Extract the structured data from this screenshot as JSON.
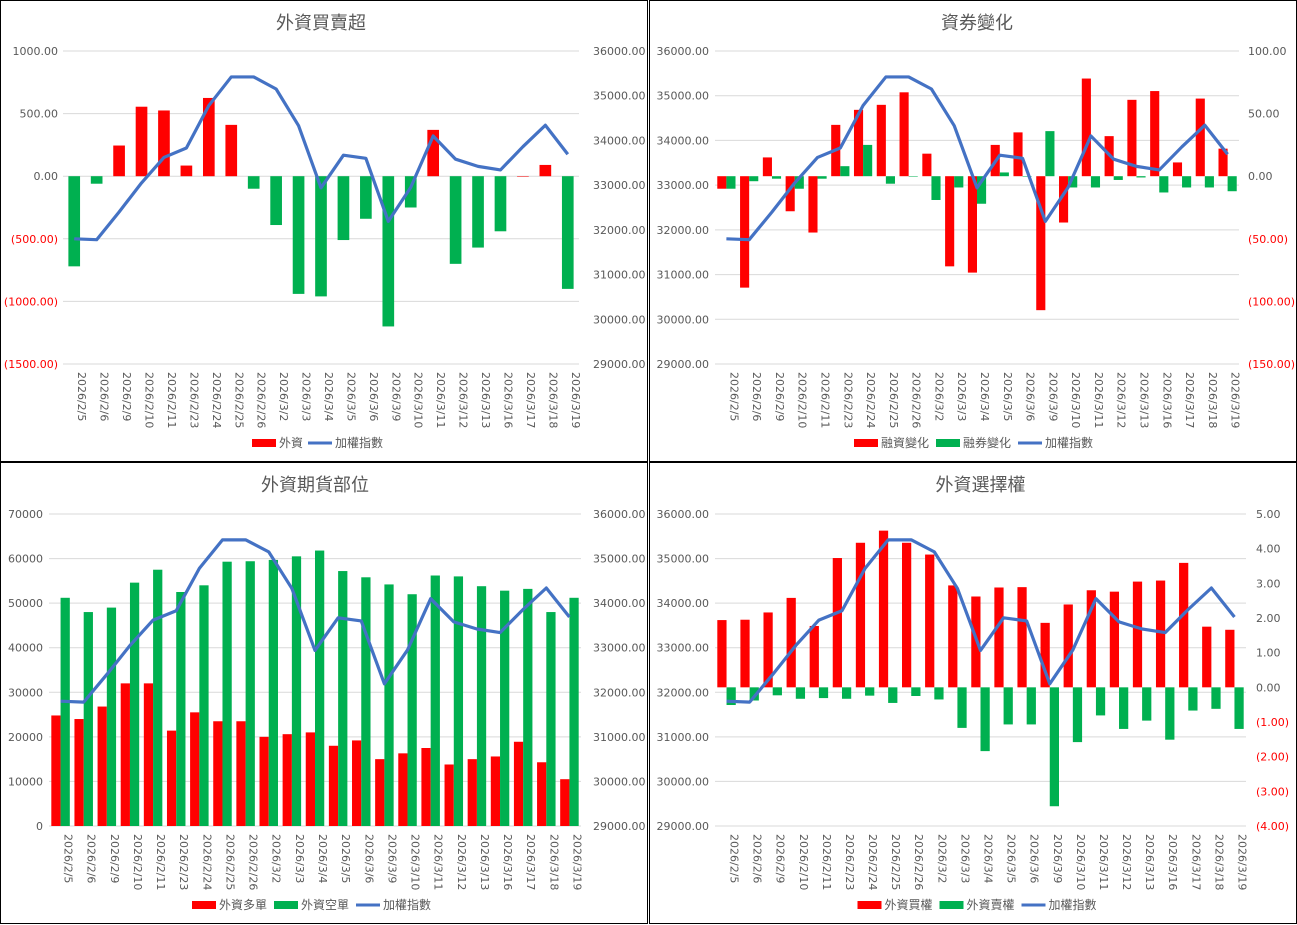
{
  "colors": {
    "red": "#ff0000",
    "green": "#00b050",
    "blue": "#4472c4",
    "grid": "#d9d9d9",
    "text": "#595959",
    "negative": "#ff0000"
  },
  "dates": [
    "2026/2/5",
    "2026/2/6",
    "2026/2/9",
    "2026/2/10",
    "2026/2/11",
    "2026/2/23",
    "2026/2/24",
    "2026/2/25",
    "2026/2/26",
    "2026/3/2",
    "2026/3/3",
    "2026/3/4",
    "2026/3/5",
    "2026/3/6",
    "2026/3/9",
    "2026/3/10",
    "2026/3/11",
    "2026/3/12",
    "2026/3/13",
    "2026/3/16",
    "2026/3/17",
    "2026/3/18",
    "2026/3/19"
  ],
  "index_line": {
    "name": "加權指數",
    "values": [
      31800,
      31780,
      32400,
      33050,
      33620,
      33830,
      34780,
      35420,
      35420,
      35150,
      34330,
      32940,
      33670,
      33600,
      32190,
      32950,
      34100,
      33580,
      33420,
      33340,
      33860,
      34340,
      33690
    ]
  },
  "chart_data": [
    {
      "type": "bar",
      "id": "c1",
      "title": "外資買賣超",
      "ylim": [
        -1500,
        1000
      ],
      "yticks": [
        "1000.00",
        "500.00",
        "0.00",
        "(500.00)",
        "(1000.00)",
        "(1500.00)"
      ],
      "y2lim": [
        29000,
        36000
      ],
      "y2ticks": [
        "36000.00",
        "35000.00",
        "34000.00",
        "33000.00",
        "32000.00",
        "31000.00",
        "30000.00",
        "29000.00"
      ],
      "series": [
        {
          "name": "外資",
          "color": "mixed",
          "values": [
            -720,
            -60,
            245,
            555,
            525,
            85,
            625,
            410,
            -100,
            -390,
            -940,
            -960,
            -510,
            -340,
            -1200,
            -250,
            370,
            -700,
            -570,
            -440,
            0,
            90,
            -900
          ]
        }
      ],
      "legend": [
        "外資",
        "加權指數"
      ]
    },
    {
      "type": "bar",
      "id": "c2",
      "title": "資券變化",
      "ylim": [
        29000,
        36000
      ],
      "yticks": [
        "36000.00",
        "35000.00",
        "34000.00",
        "33000.00",
        "32000.00",
        "31000.00",
        "30000.00",
        "29000.00"
      ],
      "y2lim": [
        -150,
        100
      ],
      "y2ticks": [
        "100.00",
        "50.00",
        "0.00",
        "(50.00)",
        "(100.00)",
        "(150.00)"
      ],
      "series": [
        {
          "name": "融資變化",
          "values": [
            -10,
            -89,
            15,
            -28,
            -45,
            41,
            53,
            57,
            67,
            18,
            -72,
            -77,
            25,
            35,
            -107,
            -37,
            78,
            32,
            61,
            68,
            11,
            62,
            22
          ]
        },
        {
          "name": "融券變化",
          "values": [
            -10,
            -4,
            -2,
            -10,
            -2,
            8,
            25,
            -6,
            0,
            -19,
            -9,
            -22,
            3,
            0,
            36,
            -9,
            -9,
            -3,
            -1,
            -13,
            -9,
            -9,
            -12
          ]
        }
      ],
      "legend": [
        "融資變化",
        "融券變化",
        "加權指數"
      ]
    },
    {
      "type": "bar",
      "id": "c3",
      "title": "外資期貨部位",
      "ylim": [
        0,
        70000
      ],
      "yticks": [
        "70000",
        "60000",
        "50000",
        "40000",
        "30000",
        "20000",
        "10000",
        "0"
      ],
      "y2lim": [
        29000,
        36000
      ],
      "y2ticks": [
        "36000.00",
        "35000.00",
        "34000.00",
        "33000.00",
        "32000.00",
        "31000.00",
        "30000.00",
        "29000.00"
      ],
      "series": [
        {
          "name": "外資多單",
          "values": [
            24800,
            24000,
            26800,
            32000,
            32000,
            21400,
            25500,
            23500,
            23500,
            20000,
            20600,
            21000,
            18000,
            19200,
            15000,
            16300,
            17500,
            13800,
            15000,
            15600,
            18900,
            14300,
            10500
          ]
        },
        {
          "name": "外資空單",
          "values": [
            51200,
            48000,
            49000,
            54600,
            57500,
            52500,
            54000,
            59300,
            59400,
            59700,
            60500,
            61800,
            57200,
            55800,
            54200,
            52000,
            56200,
            56000,
            53800,
            52800,
            53200,
            48000,
            51200
          ]
        }
      ],
      "legend": [
        "外資多單",
        "外資空單",
        "加權指數"
      ]
    },
    {
      "type": "bar",
      "id": "c4",
      "title": "外資選擇權",
      "ylim": [
        29000,
        36000
      ],
      "yticks": [
        "36000.00",
        "35000.00",
        "34000.00",
        "33000.00",
        "32000.00",
        "31000.00",
        "30000.00",
        "29000.00"
      ],
      "y2lim": [
        -4,
        5
      ],
      "y2ticks": [
        "5.00",
        "4.00",
        "3.00",
        "2.00",
        "1.00",
        "0.00",
        "(1.00)",
        "(2.00)",
        "(3.00)",
        "(4.00)"
      ],
      "series": [
        {
          "name": "外資買權",
          "values": [
            1.94,
            1.95,
            2.16,
            2.58,
            1.77,
            3.73,
            4.17,
            4.52,
            4.17,
            3.83,
            2.94,
            2.62,
            2.88,
            2.89,
            1.86,
            2.39,
            2.8,
            2.76,
            3.05,
            3.08,
            3.59,
            1.75,
            1.66
          ]
        },
        {
          "name": "外資賣權",
          "values": [
            -0.51,
            -0.38,
            -0.23,
            -0.33,
            -0.31,
            -0.33,
            -0.24,
            -0.45,
            -0.25,
            -0.35,
            -1.17,
            -1.84,
            -1.07,
            -1.07,
            -3.43,
            -1.58,
            -0.81,
            -1.2,
            -0.96,
            -1.51,
            -0.67,
            -0.62,
            -1.2
          ]
        }
      ],
      "legend": [
        "外資買權",
        "外資賣權",
        "加權指數"
      ]
    }
  ]
}
